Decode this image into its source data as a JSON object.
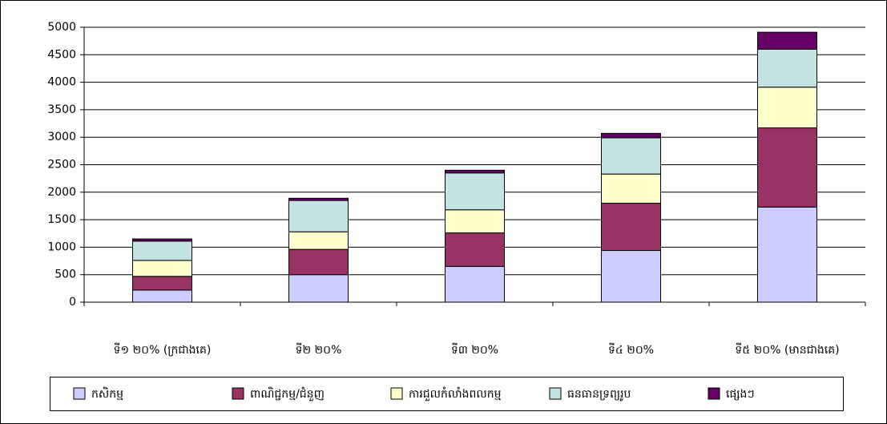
{
  "chart_data": {
    "type": "stacked_bar",
    "categories": [
      "ទី១ ២០% (ក្រជាងគេ)",
      "ទី២ ២០%",
      "ទី៣ ២០%",
      "ទី៤ ២០%",
      "ទី៥ ២០% (មានជាងគេ)"
    ],
    "series": [
      {
        "name": "កសិកម្ម",
        "color": "#ccccff",
        "values": [
          220,
          500,
          650,
          940,
          1730
        ]
      },
      {
        "name": "ពាណិជ្ជកម្ម/ជំនួញ",
        "color": "#993366",
        "values": [
          250,
          460,
          610,
          860,
          1440
        ]
      },
      {
        "name": "ការជួលកំលាំងពលកម្ម",
        "color": "#ffffcc",
        "values": [
          290,
          320,
          420,
          530,
          740
        ]
      },
      {
        "name": "ធនធានទ្រព្យរូប",
        "color": "#c4e4e4",
        "values": [
          350,
          570,
          670,
          660,
          690
        ]
      },
      {
        "name": "ផ្សេងៗ",
        "color": "#660066",
        "values": [
          40,
          40,
          50,
          80,
          310
        ]
      }
    ],
    "ylim": [
      0,
      5000
    ],
    "yticks": [
      0,
      500,
      1000,
      1500,
      2000,
      2500,
      3000,
      3500,
      4000,
      4500,
      5000
    ],
    "grid": true,
    "legend": "bottom"
  }
}
